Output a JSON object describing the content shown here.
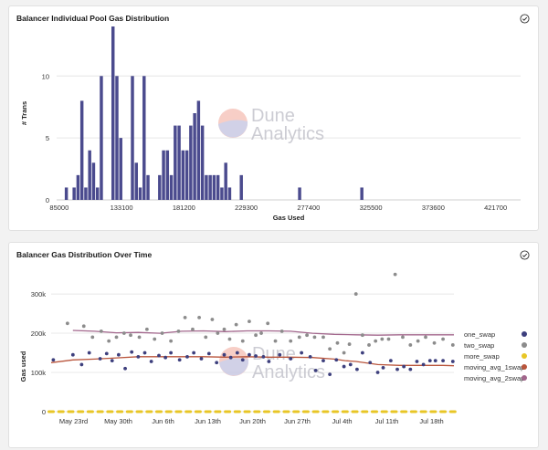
{
  "panels": [
    {
      "title": "Balancer Individual Pool Gas Distribution"
    },
    {
      "title": "Balancer Gas Distribution Over Time"
    }
  ],
  "watermark": {
    "line1": "Dune",
    "line2": "Analytics"
  },
  "colors": {
    "bar": "#4b4b8e",
    "one_swap": "#3d3f7d",
    "two_swap": "#8c8c8c",
    "more_swap": "#e8c626",
    "moving_avg_1swap": "#b9553c",
    "moving_avg_2swap": "#a2668c"
  },
  "chart_data": [
    {
      "type": "bar",
      "title": "Balancer Individual Pool Gas Distribution",
      "xlabel": "Gas Used",
      "ylabel": "# Trans",
      "xlim": [
        83000,
        441000
      ],
      "ylim": [
        0,
        14
      ],
      "xticks": [
        "85000",
        "133100",
        "181200",
        "229300",
        "277400",
        "325500",
        "373600",
        "421700"
      ],
      "yticks": [
        "0",
        "5",
        "10"
      ],
      "bin_width": 3000,
      "bins": [
        [
          89000,
          1
        ],
        [
          95000,
          1
        ],
        [
          98000,
          2
        ],
        [
          101000,
          8
        ],
        [
          104000,
          1
        ],
        [
          107000,
          4
        ],
        [
          110000,
          3
        ],
        [
          113000,
          1
        ],
        [
          116000,
          10
        ],
        [
          125000,
          14
        ],
        [
          128000,
          10
        ],
        [
          131000,
          5
        ],
        [
          140000,
          10
        ],
        [
          143000,
          3
        ],
        [
          146000,
          1
        ],
        [
          149000,
          10
        ],
        [
          152000,
          2
        ],
        [
          161000,
          2
        ],
        [
          164000,
          4
        ],
        [
          167000,
          4
        ],
        [
          170000,
          2
        ],
        [
          173000,
          6
        ],
        [
          176000,
          6
        ],
        [
          179000,
          4
        ],
        [
          182000,
          4
        ],
        [
          185000,
          6
        ],
        [
          188000,
          7
        ],
        [
          191000,
          8
        ],
        [
          194000,
          6
        ],
        [
          197000,
          2
        ],
        [
          200000,
          2
        ],
        [
          203000,
          2
        ],
        [
          206000,
          2
        ],
        [
          209000,
          1
        ],
        [
          212000,
          3
        ],
        [
          215000,
          1
        ],
        [
          224000,
          2
        ],
        [
          269000,
          1
        ],
        [
          317000,
          1
        ]
      ]
    },
    {
      "type": "scatter",
      "title": "Balancer Gas Distribution Over Time",
      "xlabel": "",
      "ylabel": "Gas used",
      "xlim": [
        0,
        37
      ],
      "ylim": [
        0,
        370000
      ],
      "xtick_labels": [
        {
          "pos": 2.5,
          "label": "May 23rd"
        },
        {
          "pos": 7.5,
          "label": "May 30th"
        },
        {
          "pos": 12.5,
          "label": "Jun 6th"
        },
        {
          "pos": 17.5,
          "label": "Jun 13th"
        },
        {
          "pos": 22.5,
          "label": "Jun 20th"
        },
        {
          "pos": 27.5,
          "label": "Jun 27th"
        },
        {
          "pos": 32.5,
          "label": "Jul 4th"
        },
        {
          "pos": 37.5,
          "label": "Jul 11th"
        },
        {
          "pos": 42.5,
          "label": "Jul 18th"
        }
      ],
      "yticks": [
        {
          "v": 0,
          "label": "0"
        },
        {
          "v": 100000,
          "label": "100k"
        },
        {
          "v": 200000,
          "label": "200k"
        },
        {
          "v": 300000,
          "label": "300k"
        }
      ],
      "legend_position": "right",
      "legend": [
        "one_swap",
        "two_swap",
        "more_swap",
        "moving_avg_1swap",
        "moving_avg_2swap"
      ],
      "series": [
        {
          "name": "one_swap",
          "points": [
            [
              0.2,
              132000
            ],
            [
              2.0,
              145000
            ],
            [
              2.8,
              120000
            ],
            [
              3.5,
              150000
            ],
            [
              4.5,
              135000
            ],
            [
              5.1,
              148000
            ],
            [
              5.6,
              130000
            ],
            [
              6.2,
              145000
            ],
            [
              6.8,
              110000
            ],
            [
              7.4,
              152000
            ],
            [
              8.0,
              140000
            ],
            [
              8.6,
              150000
            ],
            [
              9.2,
              128000
            ],
            [
              9.9,
              143000
            ],
            [
              10.5,
              138000
            ],
            [
              11.0,
              150000
            ],
            [
              11.8,
              132000
            ],
            [
              12.5,
              140000
            ],
            [
              13.1,
              150000
            ],
            [
              13.8,
              135000
            ],
            [
              14.5,
              148000
            ],
            [
              15.2,
              125000
            ],
            [
              15.9,
              145000
            ],
            [
              16.5,
              138000
            ],
            [
              17.1,
              150000
            ],
            [
              17.6,
              132000
            ],
            [
              18.2,
              145000
            ],
            [
              18.8,
              142000
            ],
            [
              19.5,
              140000
            ],
            [
              20.0,
              128000
            ],
            [
              21.0,
              145000
            ],
            [
              22.0,
              135000
            ],
            [
              23.0,
              150000
            ],
            [
              23.8,
              140000
            ],
            [
              24.3,
              105000
            ],
            [
              25.0,
              130000
            ],
            [
              25.6,
              95000
            ],
            [
              26.2,
              132000
            ],
            [
              26.9,
              115000
            ],
            [
              27.5,
              120000
            ],
            [
              28.1,
              108000
            ],
            [
              28.6,
              150000
            ],
            [
              29.3,
              125000
            ],
            [
              30.0,
              100000
            ],
            [
              30.5,
              112000
            ],
            [
              31.2,
              130000
            ],
            [
              31.8,
              108000
            ],
            [
              32.4,
              115000
            ],
            [
              33.0,
              108000
            ],
            [
              33.6,
              128000
            ],
            [
              34.2,
              120000
            ],
            [
              34.8,
              130000
            ],
            [
              35.3,
              130000
            ],
            [
              36.0,
              130000
            ],
            [
              36.9,
              128000
            ]
          ]
        },
        {
          "name": "two_swap",
          "points": [
            [
              1.5,
              225000
            ],
            [
              3.0,
              218000
            ],
            [
              3.8,
              190000
            ],
            [
              4.6,
              205000
            ],
            [
              5.3,
              180000
            ],
            [
              6.0,
              190000
            ],
            [
              6.7,
              200000
            ],
            [
              7.3,
              195000
            ],
            [
              8.1,
              190000
            ],
            [
              8.8,
              210000
            ],
            [
              9.5,
              185000
            ],
            [
              10.2,
              200000
            ],
            [
              11.0,
              180000
            ],
            [
              11.7,
              205000
            ],
            [
              12.3,
              240000
            ],
            [
              13.0,
              210000
            ],
            [
              13.6,
              240000
            ],
            [
              14.2,
              190000
            ],
            [
              14.8,
              235000
            ],
            [
              15.3,
              200000
            ],
            [
              15.9,
              210000
            ],
            [
              16.4,
              185000
            ],
            [
              17.0,
              222000
            ],
            [
              17.6,
              180000
            ],
            [
              18.2,
              230000
            ],
            [
              18.8,
              195000
            ],
            [
              19.3,
              200000
            ],
            [
              19.9,
              225000
            ],
            [
              20.6,
              180000
            ],
            [
              21.2,
              205000
            ],
            [
              22.0,
              180000
            ],
            [
              22.8,
              190000
            ],
            [
              23.5,
              195000
            ],
            [
              24.2,
              190000
            ],
            [
              25.0,
              190000
            ],
            [
              25.6,
              160000
            ],
            [
              26.3,
              175000
            ],
            [
              26.9,
              150000
            ],
            [
              27.4,
              172000
            ],
            [
              28.0,
              300000
            ],
            [
              28.6,
              195000
            ],
            [
              29.2,
              170000
            ],
            [
              29.8,
              180000
            ],
            [
              30.4,
              185000
            ],
            [
              31.0,
              185000
            ],
            [
              31.6,
              350000
            ],
            [
              32.3,
              190000
            ],
            [
              33.0,
              170000
            ],
            [
              33.7,
              180000
            ],
            [
              34.4,
              190000
            ],
            [
              35.2,
              175000
            ],
            [
              36.0,
              185000
            ],
            [
              36.9,
              170000
            ]
          ]
        },
        {
          "name": "more_swap",
          "points": [
            [
              0.0,
              0
            ],
            [
              0.9,
              0
            ],
            [
              1.8,
              0
            ],
            [
              2.7,
              0
            ],
            [
              3.6,
              0
            ],
            [
              4.5,
              0
            ],
            [
              5.4,
              0
            ],
            [
              6.3,
              0
            ],
            [
              7.2,
              0
            ],
            [
              8.1,
              0
            ],
            [
              9.0,
              0
            ],
            [
              9.9,
              0
            ],
            [
              10.8,
              0
            ],
            [
              11.7,
              0
            ],
            [
              12.6,
              0
            ],
            [
              13.5,
              0
            ],
            [
              14.4,
              0
            ],
            [
              15.3,
              0
            ],
            [
              16.2,
              0
            ],
            [
              17.1,
              0
            ],
            [
              18.0,
              0
            ],
            [
              18.9,
              0
            ],
            [
              19.8,
              0
            ],
            [
              20.7,
              0
            ],
            [
              21.6,
              0
            ],
            [
              22.5,
              0
            ],
            [
              23.4,
              0
            ],
            [
              24.3,
              0
            ],
            [
              25.2,
              0
            ],
            [
              26.1,
              0
            ],
            [
              27.0,
              0
            ],
            [
              27.9,
              0
            ],
            [
              28.8,
              0
            ],
            [
              29.7,
              0
            ],
            [
              30.6,
              0
            ],
            [
              31.5,
              0
            ],
            [
              32.4,
              0
            ],
            [
              33.3,
              0
            ],
            [
              34.2,
              0
            ],
            [
              35.1,
              0
            ],
            [
              36.0,
              0
            ],
            [
              36.9,
              0
            ]
          ]
        },
        {
          "name": "moving_avg_1swap",
          "line": [
            [
              0,
              125000
            ],
            [
              2,
              132000
            ],
            [
              4,
              134000
            ],
            [
              6,
              137000
            ],
            [
              8,
              140000
            ],
            [
              10,
              140000
            ],
            [
              12,
              140000
            ],
            [
              14,
              140000
            ],
            [
              16,
              139000
            ],
            [
              18,
              140000
            ],
            [
              20,
              139000
            ],
            [
              22,
              139000
            ],
            [
              24,
              138000
            ],
            [
              26,
              134000
            ],
            [
              27,
              130000
            ],
            [
              28,
              128000
            ],
            [
              30,
              120000
            ],
            [
              32,
              118000
            ],
            [
              34,
              118000
            ],
            [
              36,
              118000
            ],
            [
              37,
              117000
            ]
          ]
        },
        {
          "name": "moving_avg_2swap",
          "line": [
            [
              2,
              207000
            ],
            [
              4,
              205000
            ],
            [
              6,
              201000
            ],
            [
              8,
              202000
            ],
            [
              10,
              200000
            ],
            [
              12,
              205000
            ],
            [
              14,
              206000
            ],
            [
              16,
              204000
            ],
            [
              18,
              206000
            ],
            [
              20,
              206000
            ],
            [
              22,
              205000
            ],
            [
              24,
              200000
            ],
            [
              26,
              197000
            ],
            [
              28,
              196000
            ],
            [
              30,
              195000
            ],
            [
              32,
              196000
            ],
            [
              34,
              196000
            ],
            [
              36,
              196000
            ],
            [
              37,
              196000
            ]
          ]
        }
      ]
    }
  ]
}
